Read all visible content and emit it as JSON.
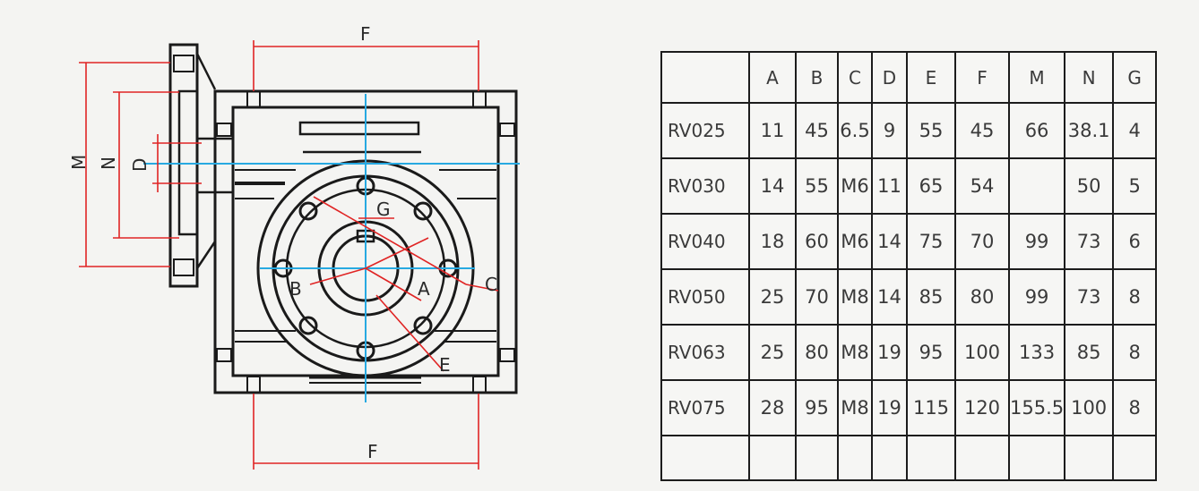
{
  "drawing": {
    "labels": {
      "f_top": "F",
      "f_bottom": "F",
      "m": "M",
      "n": "N",
      "d": "D",
      "g": "G",
      "a": "A",
      "b": "B",
      "c": "C",
      "e": "E"
    },
    "colors": {
      "outline": "#1a1a1a",
      "centerline": "#27a9e1",
      "dimension": "#e02424"
    }
  },
  "table": {
    "headers": [
      "",
      "A",
      "B",
      "C",
      "D",
      "E",
      "F",
      "M",
      "N",
      "G"
    ],
    "rows": [
      [
        "RV025",
        "11",
        "45",
        "6.5",
        "9",
        "55",
        "45",
        "66",
        "38.1",
        "4"
      ],
      [
        "RV030",
        "14",
        "55",
        "M6",
        "11",
        "65",
        "54",
        "",
        "50",
        "5"
      ],
      [
        "RV040",
        "18",
        "60",
        "M6",
        "14",
        "75",
        "70",
        "99",
        "73",
        "6"
      ],
      [
        "RV050",
        "25",
        "70",
        "M8",
        "14",
        "85",
        "80",
        "99",
        "73",
        "8"
      ],
      [
        "RV063",
        "25",
        "80",
        "M8",
        "19",
        "95",
        "100",
        "133",
        "85",
        "8"
      ],
      [
        "RV075",
        "28",
        "95",
        "M8",
        "19",
        "115",
        "120",
        "155.5",
        "100",
        "8"
      ],
      [
        "",
        "",
        "",
        "",
        "",
        "",
        "",
        "",
        "",
        ""
      ]
    ]
  }
}
